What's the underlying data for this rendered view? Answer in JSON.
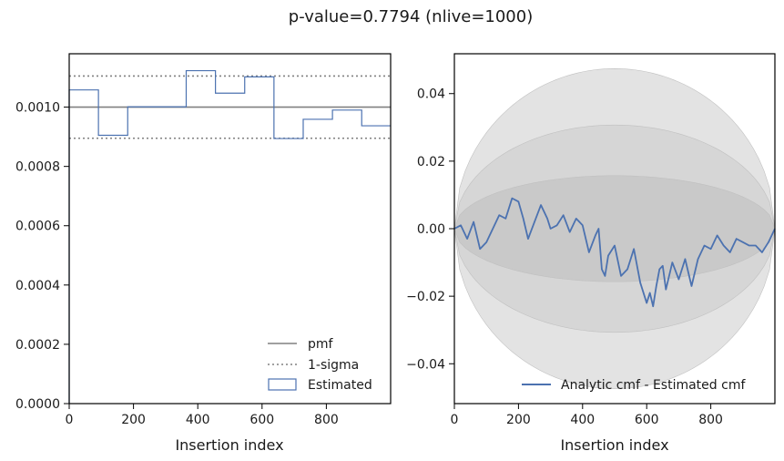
{
  "figure": {
    "suptitle": "p-value=0.7794 (nlive=1000)"
  },
  "chart_data": [
    {
      "type": "line",
      "xlabel": "Insertion index",
      "ylabel": "",
      "xlim": [
        0,
        1000
      ],
      "ylim": [
        0,
        0.00118
      ],
      "xticks": [
        0,
        200,
        400,
        600,
        800
      ],
      "xtick_labels": [
        "0",
        "200",
        "400",
        "600",
        "800"
      ],
      "yticks": [
        0,
        0.0002,
        0.0004,
        0.0006,
        0.0008,
        0.001
      ],
      "ytick_labels": [
        "0.0000",
        "0.0002",
        "0.0004",
        "0.0006",
        "0.0008",
        "0.0010"
      ],
      "grid": false,
      "legend_position": "lower right",
      "series": [
        {
          "name": "pmf",
          "style": "solid",
          "color": "#808080",
          "x": [
            0,
            1000
          ],
          "y": [
            0.001,
            0.001
          ]
        },
        {
          "name": "1-sigma",
          "style": "dotted",
          "color": "#808080",
          "y_levels": [
            0.001105,
            0.000895
          ]
        },
        {
          "name": "Estimated",
          "style": "step",
          "color": "#4c72b0",
          "bin_edges": [
            0,
            91,
            182,
            273,
            364,
            455,
            546,
            637,
            728,
            819,
            910,
            1000
          ],
          "values": [
            0.001058,
            0.000905,
            0.001001,
            0.001001,
            0.001123,
            0.001047,
            0.001102,
            0.000894,
            0.000959,
            0.00099,
            0.000937
          ]
        }
      ]
    },
    {
      "type": "area",
      "xlabel": "Insertion index",
      "ylabel": "",
      "xlim": [
        0,
        1000
      ],
      "ylim": [
        -0.0518,
        0.0518
      ],
      "xticks": [
        0,
        200,
        400,
        600,
        800
      ],
      "xtick_labels": [
        "0",
        "200",
        "400",
        "600",
        "800"
      ],
      "yticks": [
        -0.04,
        -0.02,
        0,
        0.02,
        0.04
      ],
      "ytick_labels": [
        "−0.04",
        "−0.02",
        "0.00",
        "0.02",
        "0.04"
      ],
      "grid": false,
      "legend_position": "lower right",
      "bands": [
        {
          "sigma": 3,
          "half_width_max": 0.0474,
          "color": "#e3e3e3"
        },
        {
          "sigma": 2,
          "half_width_max": 0.0307,
          "color": "#d6d6d6"
        },
        {
          "sigma": 1,
          "half_width_max": 0.0157,
          "color": "#c9c9c9"
        }
      ],
      "series": [
        {
          "name": "Analytic cmf - Estimated cmf",
          "color": "#4c72b0",
          "x": [
            0,
            20,
            40,
            60,
            80,
            100,
            120,
            140,
            160,
            180,
            200,
            215,
            230,
            250,
            270,
            290,
            300,
            320,
            340,
            360,
            380,
            400,
            410,
            420,
            440,
            450,
            460,
            470,
            480,
            500,
            520,
            540,
            560,
            580,
            600,
            610,
            620,
            630,
            640,
            650,
            660,
            680,
            700,
            720,
            740,
            760,
            780,
            800,
            820,
            840,
            860,
            880,
            900,
            920,
            940,
            960,
            980,
            1000
          ],
          "y": [
            0.0,
            0.001,
            -0.003,
            0.002,
            -0.006,
            -0.004,
            0.0,
            0.004,
            0.003,
            0.009,
            0.008,
            0.003,
            -0.003,
            0.002,
            0.007,
            0.003,
            0.0,
            0.001,
            0.004,
            -0.001,
            0.003,
            0.001,
            -0.003,
            -0.007,
            -0.002,
            0.0,
            -0.012,
            -0.014,
            -0.008,
            -0.005,
            -0.014,
            -0.012,
            -0.006,
            -0.016,
            -0.022,
            -0.019,
            -0.023,
            -0.017,
            -0.012,
            -0.011,
            -0.018,
            -0.01,
            -0.015,
            -0.009,
            -0.017,
            -0.009,
            -0.005,
            -0.006,
            -0.002,
            -0.005,
            -0.007,
            -0.003,
            -0.004,
            -0.005,
            -0.005,
            -0.007,
            -0.004,
            0.0
          ]
        }
      ]
    }
  ]
}
